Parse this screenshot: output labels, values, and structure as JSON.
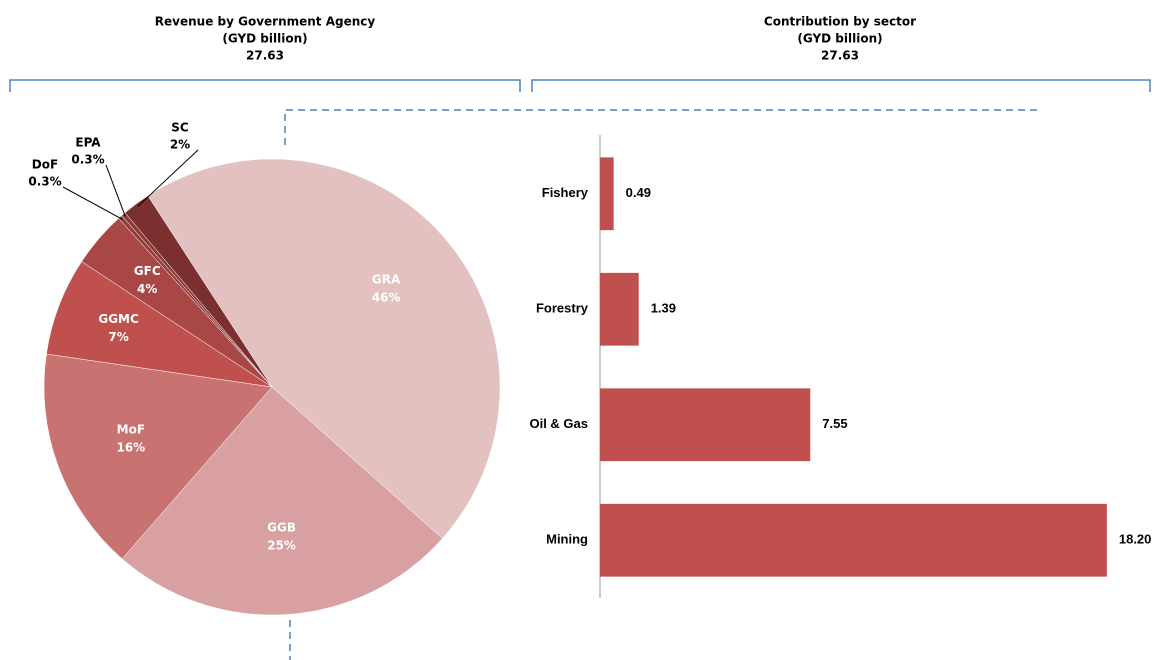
{
  "chart_data": [
    {
      "type": "pie",
      "title": "Revenue by Government Agency",
      "subtitle": "(GYD billion)",
      "total_label": "27.63",
      "categories": [
        "GRA",
        "GGB",
        "MoF",
        "GGMC",
        "GFC",
        "DoF",
        "EPA",
        "SC"
      ],
      "values": [
        46,
        25,
        16,
        7,
        4,
        0.3,
        0.3,
        2
      ],
      "value_labels": [
        "46%",
        "25%",
        "16%",
        "7%",
        "4%",
        "0.3%",
        "0.3%",
        "2%"
      ],
      "colors": [
        "#e3c1c1",
        "#d8a0a0",
        "#c97272",
        "#c0504d",
        "#a94646",
        "#943d3d",
        "#8a3838",
        "#7b2f2f"
      ]
    },
    {
      "type": "bar",
      "orientation": "horizontal",
      "title": "Contribution by sector",
      "subtitle": "(GYD billion)",
      "total_label": "27.63",
      "categories": [
        "Fishery",
        "Forestry",
        "Oil & Gas",
        "Mining"
      ],
      "values": [
        0.49,
        1.39,
        7.55,
        18.2
      ],
      "value_labels": [
        "0.49",
        "1.39",
        "7.55",
        "18.20"
      ],
      "color": "#c0504d",
      "xlim": [
        0,
        20
      ]
    }
  ]
}
